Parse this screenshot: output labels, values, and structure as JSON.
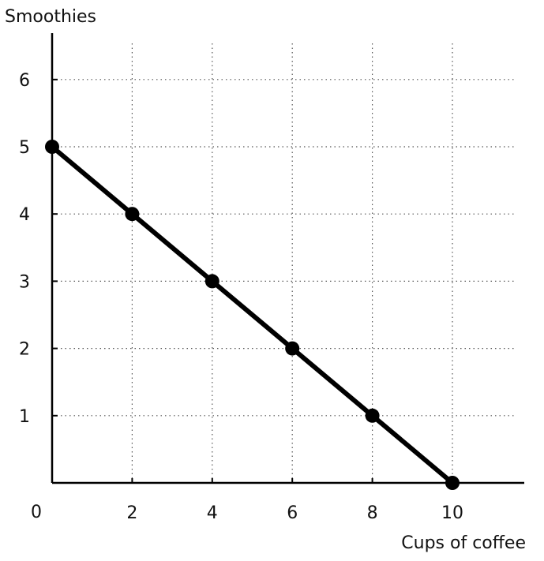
{
  "chart_data": {
    "type": "line",
    "title": "",
    "xlabel": "Cups of coffee",
    "ylabel": "Smoothies",
    "x": [
      0,
      2,
      4,
      6,
      8,
      10
    ],
    "series": [
      {
        "values": [
          5,
          4,
          3,
          2,
          1,
          0
        ]
      }
    ],
    "xlim": [
      0,
      11.8
    ],
    "ylim": [
      0,
      6.6
    ],
    "x_ticks": [
      2,
      4,
      6,
      8,
      10
    ],
    "x_tick_labels": [
      "2",
      "4",
      "6",
      "8",
      "10"
    ],
    "y_ticks": [
      1,
      2,
      3,
      4,
      5,
      6
    ],
    "y_tick_labels": [
      "1",
      "2",
      "3",
      "4",
      "5",
      "6"
    ],
    "origin_label": "0",
    "grid": true,
    "grid_style": "dotted",
    "markers": true,
    "colors": {
      "line": "#000000",
      "grid": "#555555",
      "axis": "#000000",
      "background": "#ffffff"
    }
  }
}
